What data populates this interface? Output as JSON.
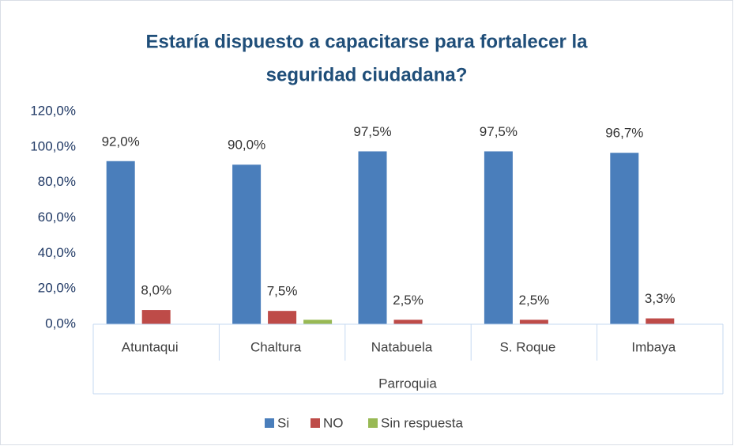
{
  "chart_data": {
    "type": "bar",
    "title": [
      "Estaría dispuesto a capacitarse para fortalecer la",
      "seguridad ciudadana?"
    ],
    "x_label": "Parroquia",
    "categories": [
      "Atuntaqui",
      "Chaltura",
      "Natabuela",
      "S. Roque",
      "Imbaya"
    ],
    "series": [
      {
        "name": "Si",
        "color": "#4a7ebb",
        "values": [
          92.0,
          90.0,
          97.5,
          97.5,
          96.7
        ],
        "value_labels": [
          "92,0%",
          "90,0%",
          "97,5%",
          "97,5%",
          "96,7%"
        ]
      },
      {
        "name": "NO",
        "color": "#be4b48",
        "values": [
          8.0,
          7.5,
          2.5,
          2.5,
          3.3
        ],
        "value_labels": [
          "8,0%",
          "7,5%",
          "2,5%",
          "2,5%",
          "3,3%"
        ]
      },
      {
        "name": "Sin respuesta",
        "color": "#98b954",
        "values": [
          0,
          2.5,
          0,
          0,
          0
        ]
      }
    ],
    "ylim": [
      0,
      120
    ],
    "yticks": [
      {
        "value": 0,
        "label": "0,0%"
      },
      {
        "value": 20,
        "label": "20,0%"
      },
      {
        "value": 40,
        "label": "40,0%"
      },
      {
        "value": 60,
        "label": "60,0%"
      },
      {
        "value": 80,
        "label": "80,0%"
      },
      {
        "value": 100,
        "label": "100,0%"
      },
      {
        "value": 120,
        "label": "120,0%"
      }
    ],
    "legend": "bottom"
  }
}
